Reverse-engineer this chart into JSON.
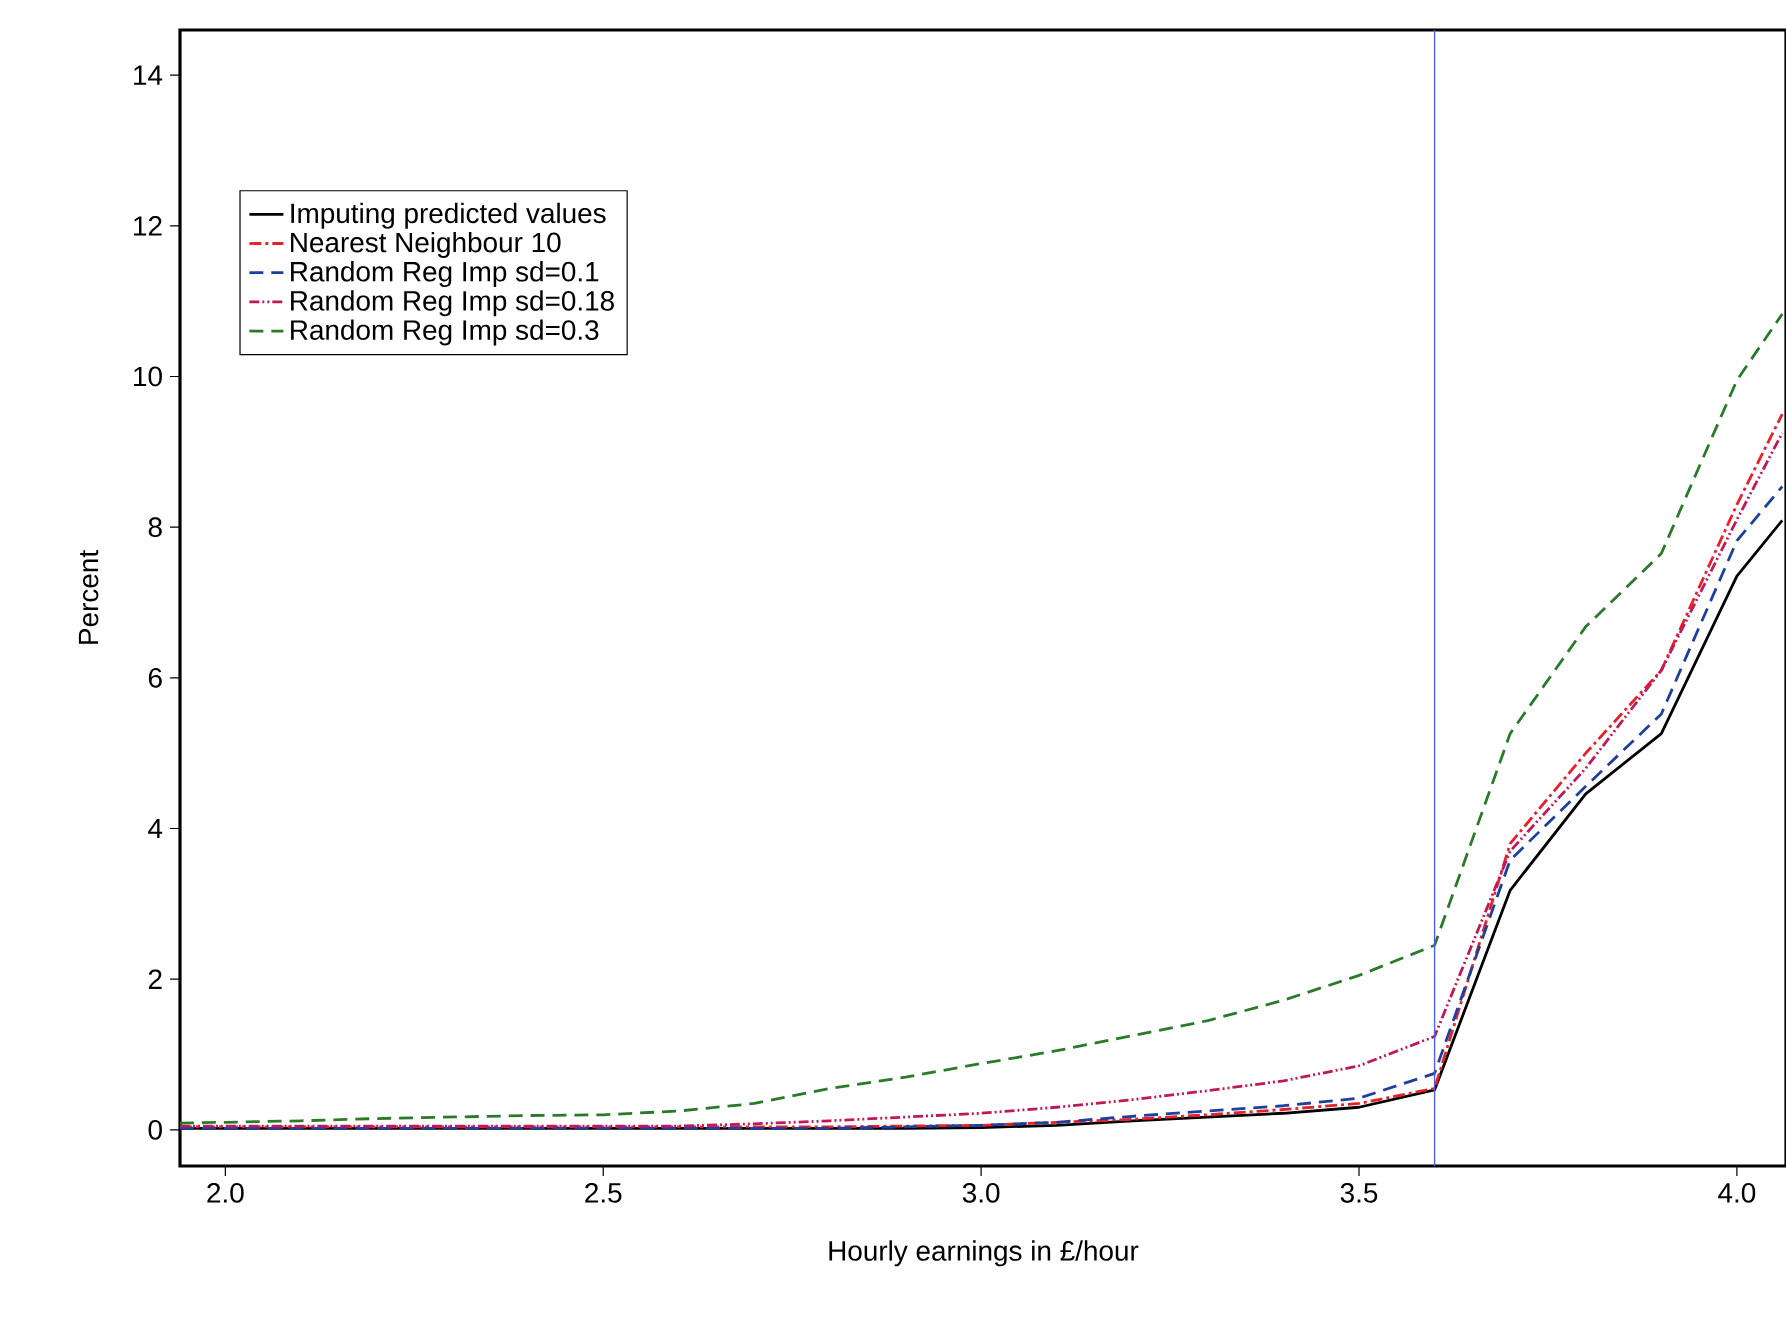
{
  "chart_data": {
    "type": "line",
    "xlabel": "Hourly earnings in £/hour",
    "ylabel": "Percent",
    "xlim": [
      1.94,
      4.065
    ],
    "ylim": [
      -0.48,
      14.6
    ],
    "xticks": [
      {
        "value": 2,
        "label": "2.0"
      },
      {
        "value": 2.5,
        "label": "2.5"
      },
      {
        "value": 3,
        "label": "3.0"
      },
      {
        "value": 3.5,
        "label": "3.5"
      },
      {
        "value": 4,
        "label": "4.0"
      }
    ],
    "yticks": [
      0,
      2,
      4,
      6,
      8,
      10,
      12,
      14
    ],
    "x": [
      1.94,
      2.0,
      2.1,
      2.2,
      2.3,
      2.4,
      2.5,
      2.6,
      2.7,
      2.8,
      2.9,
      3.0,
      3.1,
      3.2,
      3.3,
      3.4,
      3.5,
      3.6,
      3.7,
      3.8,
      3.9,
      4.0,
      4.06
    ],
    "legend": "top left",
    "grid": false,
    "marker": "none",
    "ref_lines": [
      {
        "axis": "x",
        "value": 3.6,
        "color": "#5060e0"
      }
    ],
    "series": [
      {
        "name": "Imputing predicted values",
        "color": "#000000",
        "line_style": "solid",
        "values": [
          0.02,
          0.02,
          0.02,
          0.02,
          0.02,
          0.02,
          0.02,
          0.02,
          0.02,
          0.02,
          0.02,
          0.03,
          0.06,
          0.12,
          0.17,
          0.22,
          0.3,
          0.53,
          3.18,
          4.46,
          5.26,
          7.35,
          8.09
        ]
      },
      {
        "name": "Nearest Neighbour 10",
        "color": "#e8202a",
        "line_style": "dashdotted",
        "values": [
          0.04,
          0.04,
          0.04,
          0.04,
          0.04,
          0.04,
          0.04,
          0.04,
          0.04,
          0.04,
          0.05,
          0.06,
          0.1,
          0.14,
          0.2,
          0.27,
          0.35,
          0.55,
          3.8,
          5.0,
          6.1,
          8.3,
          9.5
        ]
      },
      {
        "name": "Random Reg Imp sd=0.1",
        "color": "#1f3f9f",
        "line_style": "dashed",
        "values": [
          0.02,
          0.02,
          0.02,
          0.02,
          0.02,
          0.02,
          0.02,
          0.02,
          0.02,
          0.02,
          0.04,
          0.06,
          0.1,
          0.18,
          0.25,
          0.32,
          0.42,
          0.75,
          3.58,
          4.56,
          5.52,
          7.82,
          8.54
        ]
      },
      {
        "name": "Random Reg Imp sd=0.18",
        "color": "#c0185a",
        "line_style": "dashdotdotted",
        "values": [
          0.05,
          0.05,
          0.05,
          0.05,
          0.05,
          0.05,
          0.05,
          0.05,
          0.08,
          0.12,
          0.17,
          0.22,
          0.3,
          0.4,
          0.52,
          0.65,
          0.85,
          1.24,
          3.7,
          4.8,
          6.1,
          8.1,
          9.25
        ]
      },
      {
        "name": "Random Reg Imp sd=0.3",
        "color": "#2a7a2a",
        "line_style": "dashed",
        "values": [
          0.09,
          0.1,
          0.12,
          0.15,
          0.17,
          0.19,
          0.2,
          0.25,
          0.35,
          0.55,
          0.7,
          0.88,
          1.05,
          1.25,
          1.45,
          1.72,
          2.05,
          2.45,
          5.26,
          6.68,
          7.65,
          9.95,
          10.83
        ]
      }
    ]
  }
}
